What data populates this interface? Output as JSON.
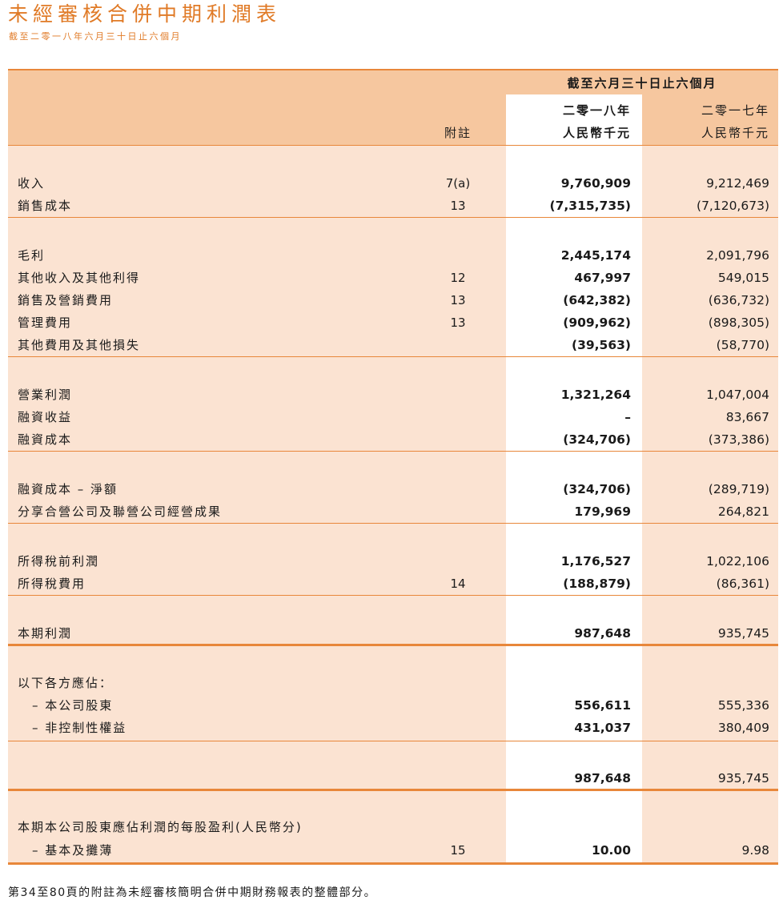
{
  "header": {
    "title": "未經審核合併中期利潤表",
    "subtitle": "截至二零一八年六月三十日止六個月"
  },
  "columns": {
    "period": "截至六月三十日止六個月",
    "note": "附註",
    "cur_year": "二零一八年",
    "cur_unit": "人民幣千元",
    "prev_year": "二零一七年",
    "prev_unit": "人民幣千元"
  },
  "rows": [
    {
      "label": "收入",
      "note": "7(a)",
      "cur": "9,760,909",
      "prev": "9,212,469"
    },
    {
      "label": "銷售成本",
      "note": "13",
      "cur": "(7,315,735)",
      "prev": "(7,120,673)"
    },
    {
      "label": "毛利",
      "note": "",
      "cur": "2,445,174",
      "prev": "2,091,796"
    },
    {
      "label": "其他收入及其他利得",
      "note": "12",
      "cur": "467,997",
      "prev": "549,015"
    },
    {
      "label": "銷售及營銷費用",
      "note": "13",
      "cur": "(642,382)",
      "prev": "(636,732)"
    },
    {
      "label": "管理費用",
      "note": "13",
      "cur": "(909,962)",
      "prev": "(898,305)"
    },
    {
      "label": "其他費用及其他損失",
      "note": "",
      "cur": "(39,563)",
      "prev": "(58,770)"
    },
    {
      "label": "營業利潤",
      "note": "",
      "cur": "1,321,264",
      "prev": "1,047,004"
    },
    {
      "label": "融資收益",
      "note": "",
      "cur": "–",
      "prev": "83,667"
    },
    {
      "label": "融資成本",
      "note": "",
      "cur": "(324,706)",
      "prev": "(373,386)"
    },
    {
      "label": "融資成本 – 淨額",
      "note": "",
      "cur": "(324,706)",
      "prev": "(289,719)"
    },
    {
      "label": "分享合營公司及聯營公司經營成果",
      "note": "",
      "cur": "179,969",
      "prev": "264,821"
    },
    {
      "label": "所得稅前利潤",
      "note": "",
      "cur": "1,176,527",
      "prev": "1,022,106"
    },
    {
      "label": "所得稅費用",
      "note": "14",
      "cur": "(188,879)",
      "prev": "(86,361)"
    },
    {
      "label": "本期利潤",
      "note": "",
      "cur": "987,648",
      "prev": "935,745"
    },
    {
      "label": "以下各方應佔：",
      "note": "",
      "cur": "",
      "prev": ""
    },
    {
      "label": "– 本公司股東",
      "note": "",
      "cur": "556,611",
      "prev": "555,336"
    },
    {
      "label": "– 非控制性權益",
      "note": "",
      "cur": "431,037",
      "prev": "380,409"
    },
    {
      "label": "",
      "note": "",
      "cur": "987,648",
      "prev": "935,745"
    },
    {
      "label": "本期本公司股東應佔利潤的每股盈利(人民幣分)",
      "note": "",
      "cur": "",
      "prev": ""
    },
    {
      "label": "– 基本及攤薄",
      "note": "15",
      "cur": "10.00",
      "prev": "9.98"
    }
  ],
  "footer": "第34至80頁的附註為未經審核簡明合併中期財務報表的整體部分。",
  "colors": {
    "accent": "#e07a26",
    "header_band": "#f6c79f",
    "body_band": "#fbe3d2"
  }
}
